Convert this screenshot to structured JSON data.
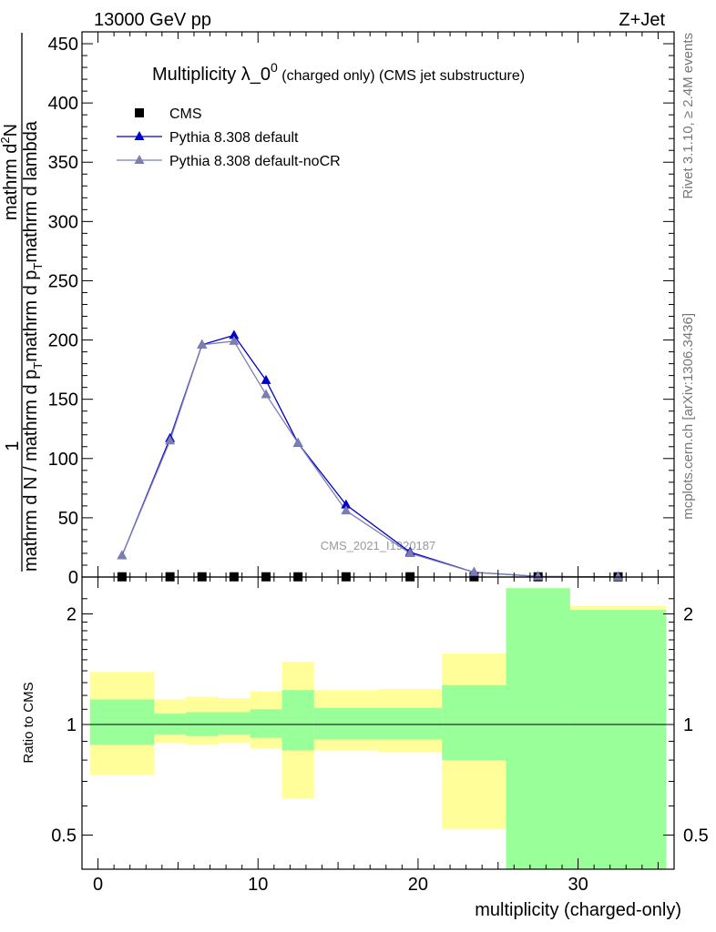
{
  "header": {
    "left": "13000 GeV pp",
    "right": "Z+Jet"
  },
  "side_text": {
    "rivet": "Rivet 3.1.10, ≥ 2.4M events",
    "mcplots": "mcplots.cern.ch [arXiv:1306.3436]"
  },
  "chart_data": [
    {
      "type": "line",
      "title_main": "Multiplicity λ_0",
      "title_sup": "0",
      "title_rest": " (charged only) (CMS jet substructure)",
      "watermark": "CMS_2021_I1920187",
      "ylabel_parts": [
        "1",
        "mathrm d N / mathrm d p",
        "T",
        "mathrm d p",
        "T",
        "mathrm d lambda",
        "mathrm d",
        "2",
        "N"
      ],
      "xlim": [
        -1,
        36
      ],
      "ylim": [
        0,
        460
      ],
      "yticks": [
        0,
        50,
        100,
        150,
        200,
        250,
        300,
        350,
        400,
        450
      ],
      "legend_position": "top-left",
      "series": [
        {
          "name": "CMS",
          "marker": "square",
          "color": "#000000",
          "x": [
            1.5,
            4.5,
            6.5,
            8.5,
            10.5,
            12.5,
            15.5,
            19.5,
            23.5,
            27.5,
            32.5
          ],
          "y": [
            0.2,
            0.2,
            0.2,
            0.2,
            0.2,
            0.2,
            0.2,
            0.2,
            0.2,
            0.2,
            0.2
          ]
        },
        {
          "name": "Pythia 8.308 default",
          "marker": "triangle",
          "color": "#0000cc",
          "x": [
            1.5,
            4.5,
            6.5,
            8.5,
            10.5,
            12.5,
            15.5,
            19.5,
            23.5,
            27.5,
            32.5
          ],
          "y": [
            18,
            117,
            196,
            204,
            166,
            113,
            61,
            21,
            4,
            0.5,
            0.1
          ]
        },
        {
          "name": "Pythia 8.308 default-noCR",
          "marker": "triangle",
          "color": "#7b7fb0",
          "x": [
            1.5,
            4.5,
            6.5,
            8.5,
            10.5,
            12.5,
            15.5,
            19.5,
            23.5,
            27.5,
            32.5
          ],
          "y": [
            18,
            115,
            196,
            199,
            154,
            113,
            56,
            20,
            4,
            0.5,
            0.1
          ]
        }
      ]
    },
    {
      "type": "area",
      "ylabel": "Ratio to CMS",
      "xlabel": "multiplicity (charged-only)",
      "xlim": [
        -1,
        36
      ],
      "ylim": [
        0.35,
        2.35
      ],
      "yticks": [
        0.5,
        1,
        2
      ],
      "xticks": [
        0,
        10,
        20,
        30
      ],
      "bands": {
        "edges": [
          -0.5,
          3.5,
          5.5,
          7.5,
          9.5,
          11.5,
          13.5,
          17.5,
          21.5,
          25.5,
          29.5,
          35.5
        ],
        "yellow_lo": [
          0.73,
          0.89,
          0.88,
          0.89,
          0.86,
          0.63,
          0.85,
          0.84,
          0.52,
          0.35,
          0.35
        ],
        "yellow_hi": [
          1.39,
          1.17,
          1.19,
          1.18,
          1.23,
          1.48,
          1.24,
          1.25,
          1.56,
          2.35,
          2.1
        ],
        "green_lo": [
          0.88,
          0.94,
          0.93,
          0.94,
          0.92,
          0.85,
          0.91,
          0.91,
          0.8,
          0.35,
          0.35
        ],
        "green_hi": [
          1.17,
          1.07,
          1.08,
          1.08,
          1.1,
          1.24,
          1.11,
          1.11,
          1.28,
          2.35,
          2.05
        ]
      }
    }
  ],
  "colors": {
    "band_yellow": "#fffe99",
    "band_green": "#99ff99"
  }
}
